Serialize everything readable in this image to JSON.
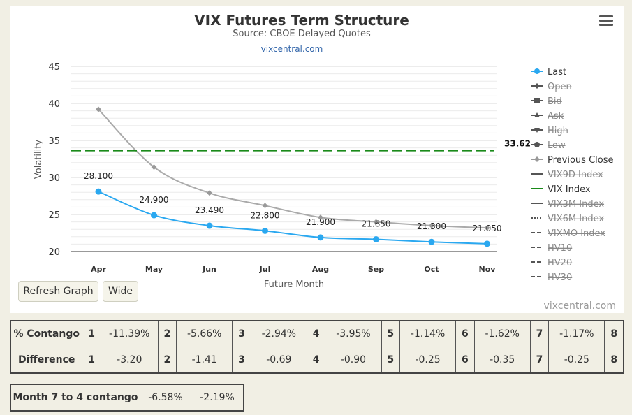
{
  "chart_data": {
    "type": "line",
    "title": "VIX Futures Term Structure",
    "subtitle": "Source: CBOE Delayed Quotes",
    "link": "vixcentral.com",
    "credits": "vixcentral.com",
    "xlabel": "Future Month",
    "ylabel": "Volatility",
    "categories": [
      "Apr",
      "May",
      "Jun",
      "Jul",
      "Aug",
      "Sep",
      "Oct",
      "Nov"
    ],
    "ylim": [
      20,
      45
    ],
    "yticks": [
      20,
      25,
      30,
      35,
      40,
      45
    ],
    "grid": true,
    "legend_position": "right",
    "series": [
      {
        "name": "Last",
        "values": [
          28.1,
          24.9,
          23.49,
          22.8,
          21.9,
          21.65,
          21.3,
          21.05
        ],
        "labels": [
          "28.100",
          "24.900",
          "23.490",
          "22.800",
          "21.900",
          "21.650",
          "21.300",
          "21.050"
        ],
        "color": "#2aa8f0"
      },
      {
        "name": "Previous Close",
        "values": [
          39.2,
          31.4,
          27.9,
          26.2,
          24.6,
          24.0,
          23.5,
          23.2
        ],
        "color": "#aaaaaa"
      },
      {
        "name": "VIX Index",
        "value": 33.62,
        "label": "33.62",
        "color": "#1a8a1a"
      }
    ],
    "legend": [
      {
        "name": "Last",
        "enabled": true,
        "symbol": "circle",
        "color": "#2aa8f0"
      },
      {
        "name": "Open",
        "enabled": false,
        "symbol": "diamond",
        "color": "#555555"
      },
      {
        "name": "Bid",
        "enabled": false,
        "symbol": "square",
        "color": "#555555"
      },
      {
        "name": "Ask",
        "enabled": false,
        "symbol": "triangle",
        "color": "#555555"
      },
      {
        "name": "High",
        "enabled": false,
        "symbol": "triangle-down",
        "color": "#555555"
      },
      {
        "name": "Low",
        "enabled": false,
        "symbol": "circle",
        "color": "#555555"
      },
      {
        "name": "Previous Close",
        "enabled": true,
        "symbol": "diamond",
        "color": "#999999"
      },
      {
        "name": "VIX9D Index",
        "enabled": false,
        "symbol": "line",
        "color": "#555555"
      },
      {
        "name": "VIX Index",
        "enabled": true,
        "symbol": "line",
        "color": "#1a8a1a"
      },
      {
        "name": "VIX3M Index",
        "enabled": false,
        "symbol": "line",
        "color": "#555555"
      },
      {
        "name": "VIX6M Index",
        "enabled": false,
        "symbol": "dotted",
        "color": "#555555"
      },
      {
        "name": "VIXMO Index",
        "enabled": false,
        "symbol": "dashed",
        "color": "#555555"
      },
      {
        "name": "HV10",
        "enabled": false,
        "symbol": "dashed",
        "color": "#555555"
      },
      {
        "name": "HV20",
        "enabled": false,
        "symbol": "dashed",
        "color": "#555555"
      },
      {
        "name": "HV30",
        "enabled": false,
        "symbol": "dashed",
        "color": "#555555"
      }
    ]
  },
  "buttons": {
    "refresh": "Refresh Graph",
    "wide": "Wide"
  },
  "contango_table": {
    "rows": [
      {
        "label": "% Contango",
        "cells": [
          "1",
          "-11.39%",
          "2",
          "-5.66%",
          "3",
          "-2.94%",
          "4",
          "-3.95%",
          "5",
          "-1.14%",
          "6",
          "-1.62%",
          "7",
          "-1.17%",
          "8"
        ]
      },
      {
        "label": "Difference",
        "cells": [
          "1",
          "-3.20",
          "2",
          "-1.41",
          "3",
          "-0.69",
          "4",
          "-0.90",
          "5",
          "-0.25",
          "6",
          "-0.35",
          "7",
          "-0.25",
          "8"
        ]
      }
    ]
  },
  "month_table": {
    "label": "Month 7 to 4 contango",
    "values": [
      "-6.58%",
      "-2.19%"
    ]
  }
}
